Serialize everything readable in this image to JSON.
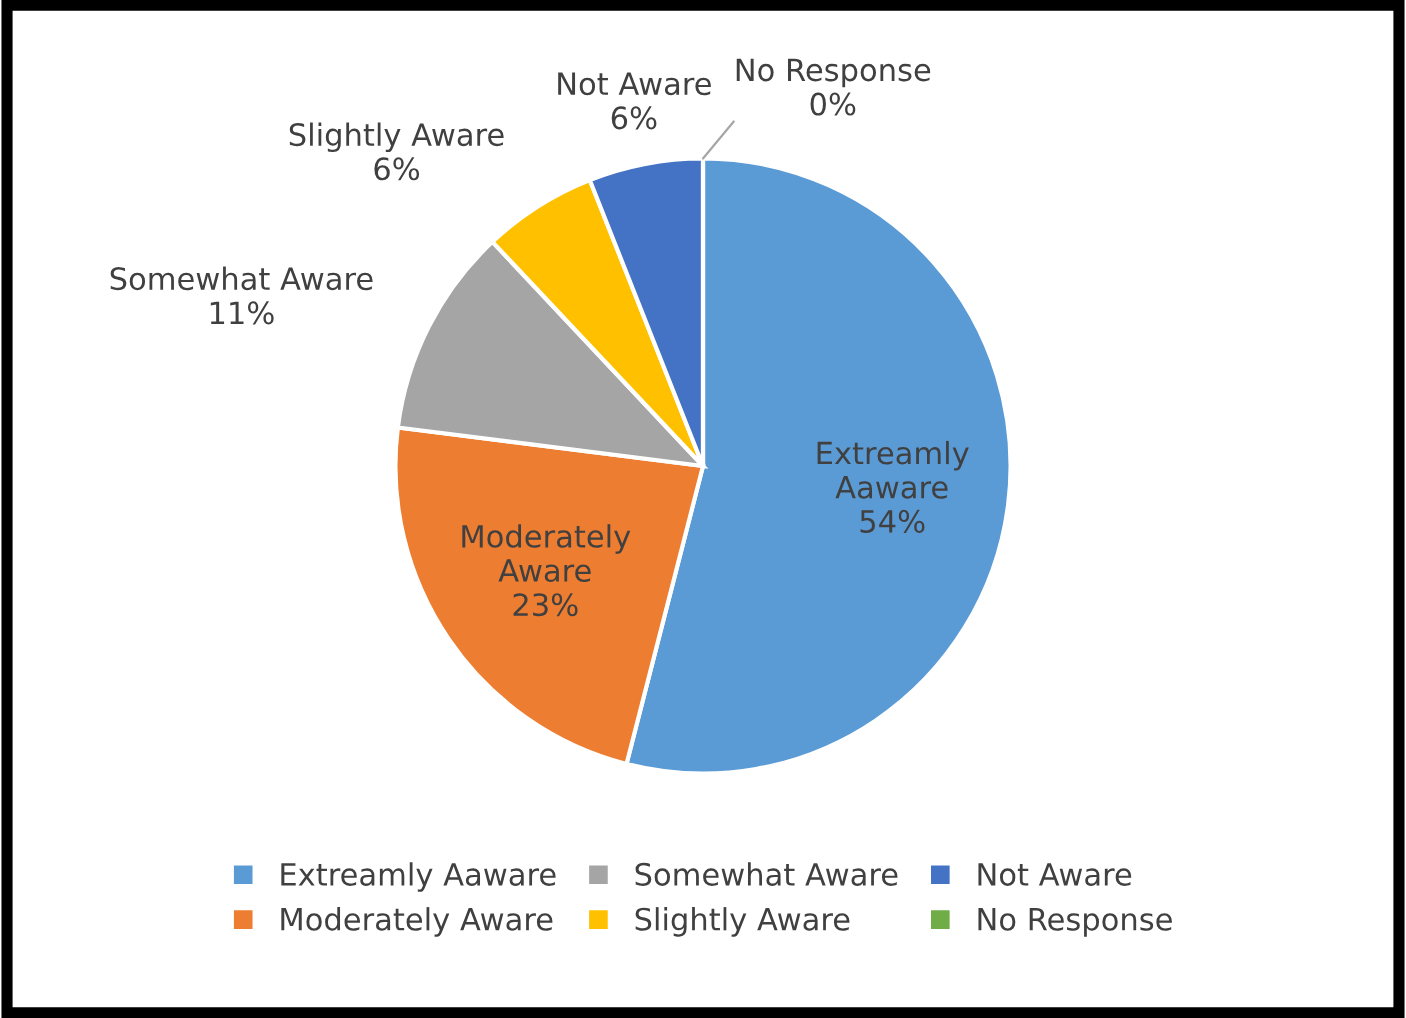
{
  "chart_data": {
    "type": "pie",
    "categories": [
      "Extreamly Aaware",
      "Moderately Aware",
      "Somewhat Aware",
      "Slightly Aware",
      "Not Aware",
      "No Response"
    ],
    "values": [
      54,
      23,
      11,
      6,
      6,
      0
    ],
    "value_labels": [
      "54%",
      "23%",
      "11%",
      "6%",
      "6%",
      "0%"
    ],
    "colors": [
      "#5b9bd5",
      "#ed7d31",
      "#a5a5a5",
      "#ffc000",
      "#4472c4",
      "#70ad47"
    ],
    "legend": "bottom"
  }
}
